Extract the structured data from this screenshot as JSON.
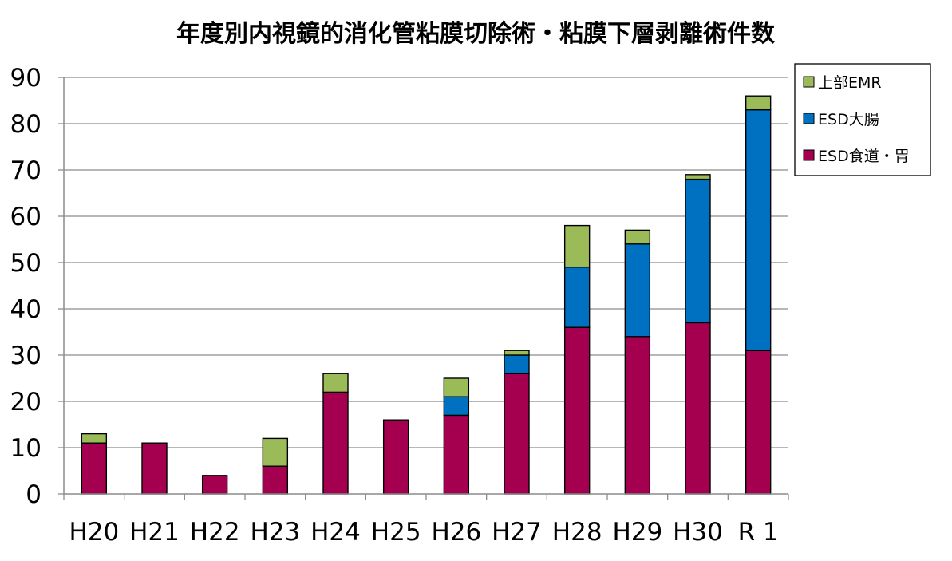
{
  "chart_data": {
    "type": "bar",
    "stacked": true,
    "title": "年度別内視鏡的消化管粘膜切除術・粘膜下層剥離術件数",
    "xlabel": "",
    "ylabel": "",
    "ylim": [
      0,
      90
    ],
    "ytick_step": 10,
    "grid": true,
    "legend_position": "top-right",
    "categories": [
      "H20",
      "H21",
      "H22",
      "H23",
      "H24",
      "H25",
      "H26",
      "H27",
      "H28",
      "H29",
      "H30",
      "R 1"
    ],
    "category_labels": [
      "H20",
      "H21",
      "H22",
      "H23",
      "H24",
      "H25",
      "H26",
      "H27",
      "H28",
      "H29",
      "H30",
      "R 1"
    ],
    "series": [
      {
        "name": "ESD食道・胃",
        "color": "#A50050",
        "values": [
          11,
          11,
          4,
          6,
          22,
          16,
          17,
          26,
          36,
          34,
          37,
          31
        ]
      },
      {
        "name": "ESD大腸",
        "color": "#0070C0",
        "values": [
          0,
          0,
          0,
          0,
          0,
          0,
          4,
          4,
          13,
          20,
          31,
          52
        ]
      },
      {
        "name": "上部EMR",
        "color": "#9BBB59",
        "values": [
          2,
          0,
          0,
          6,
          4,
          0,
          4,
          1,
          9,
          3,
          1,
          3
        ]
      }
    ],
    "legend_order": [
      "上部EMR",
      "ESD大腸",
      "ESD食道・胃"
    ]
  }
}
